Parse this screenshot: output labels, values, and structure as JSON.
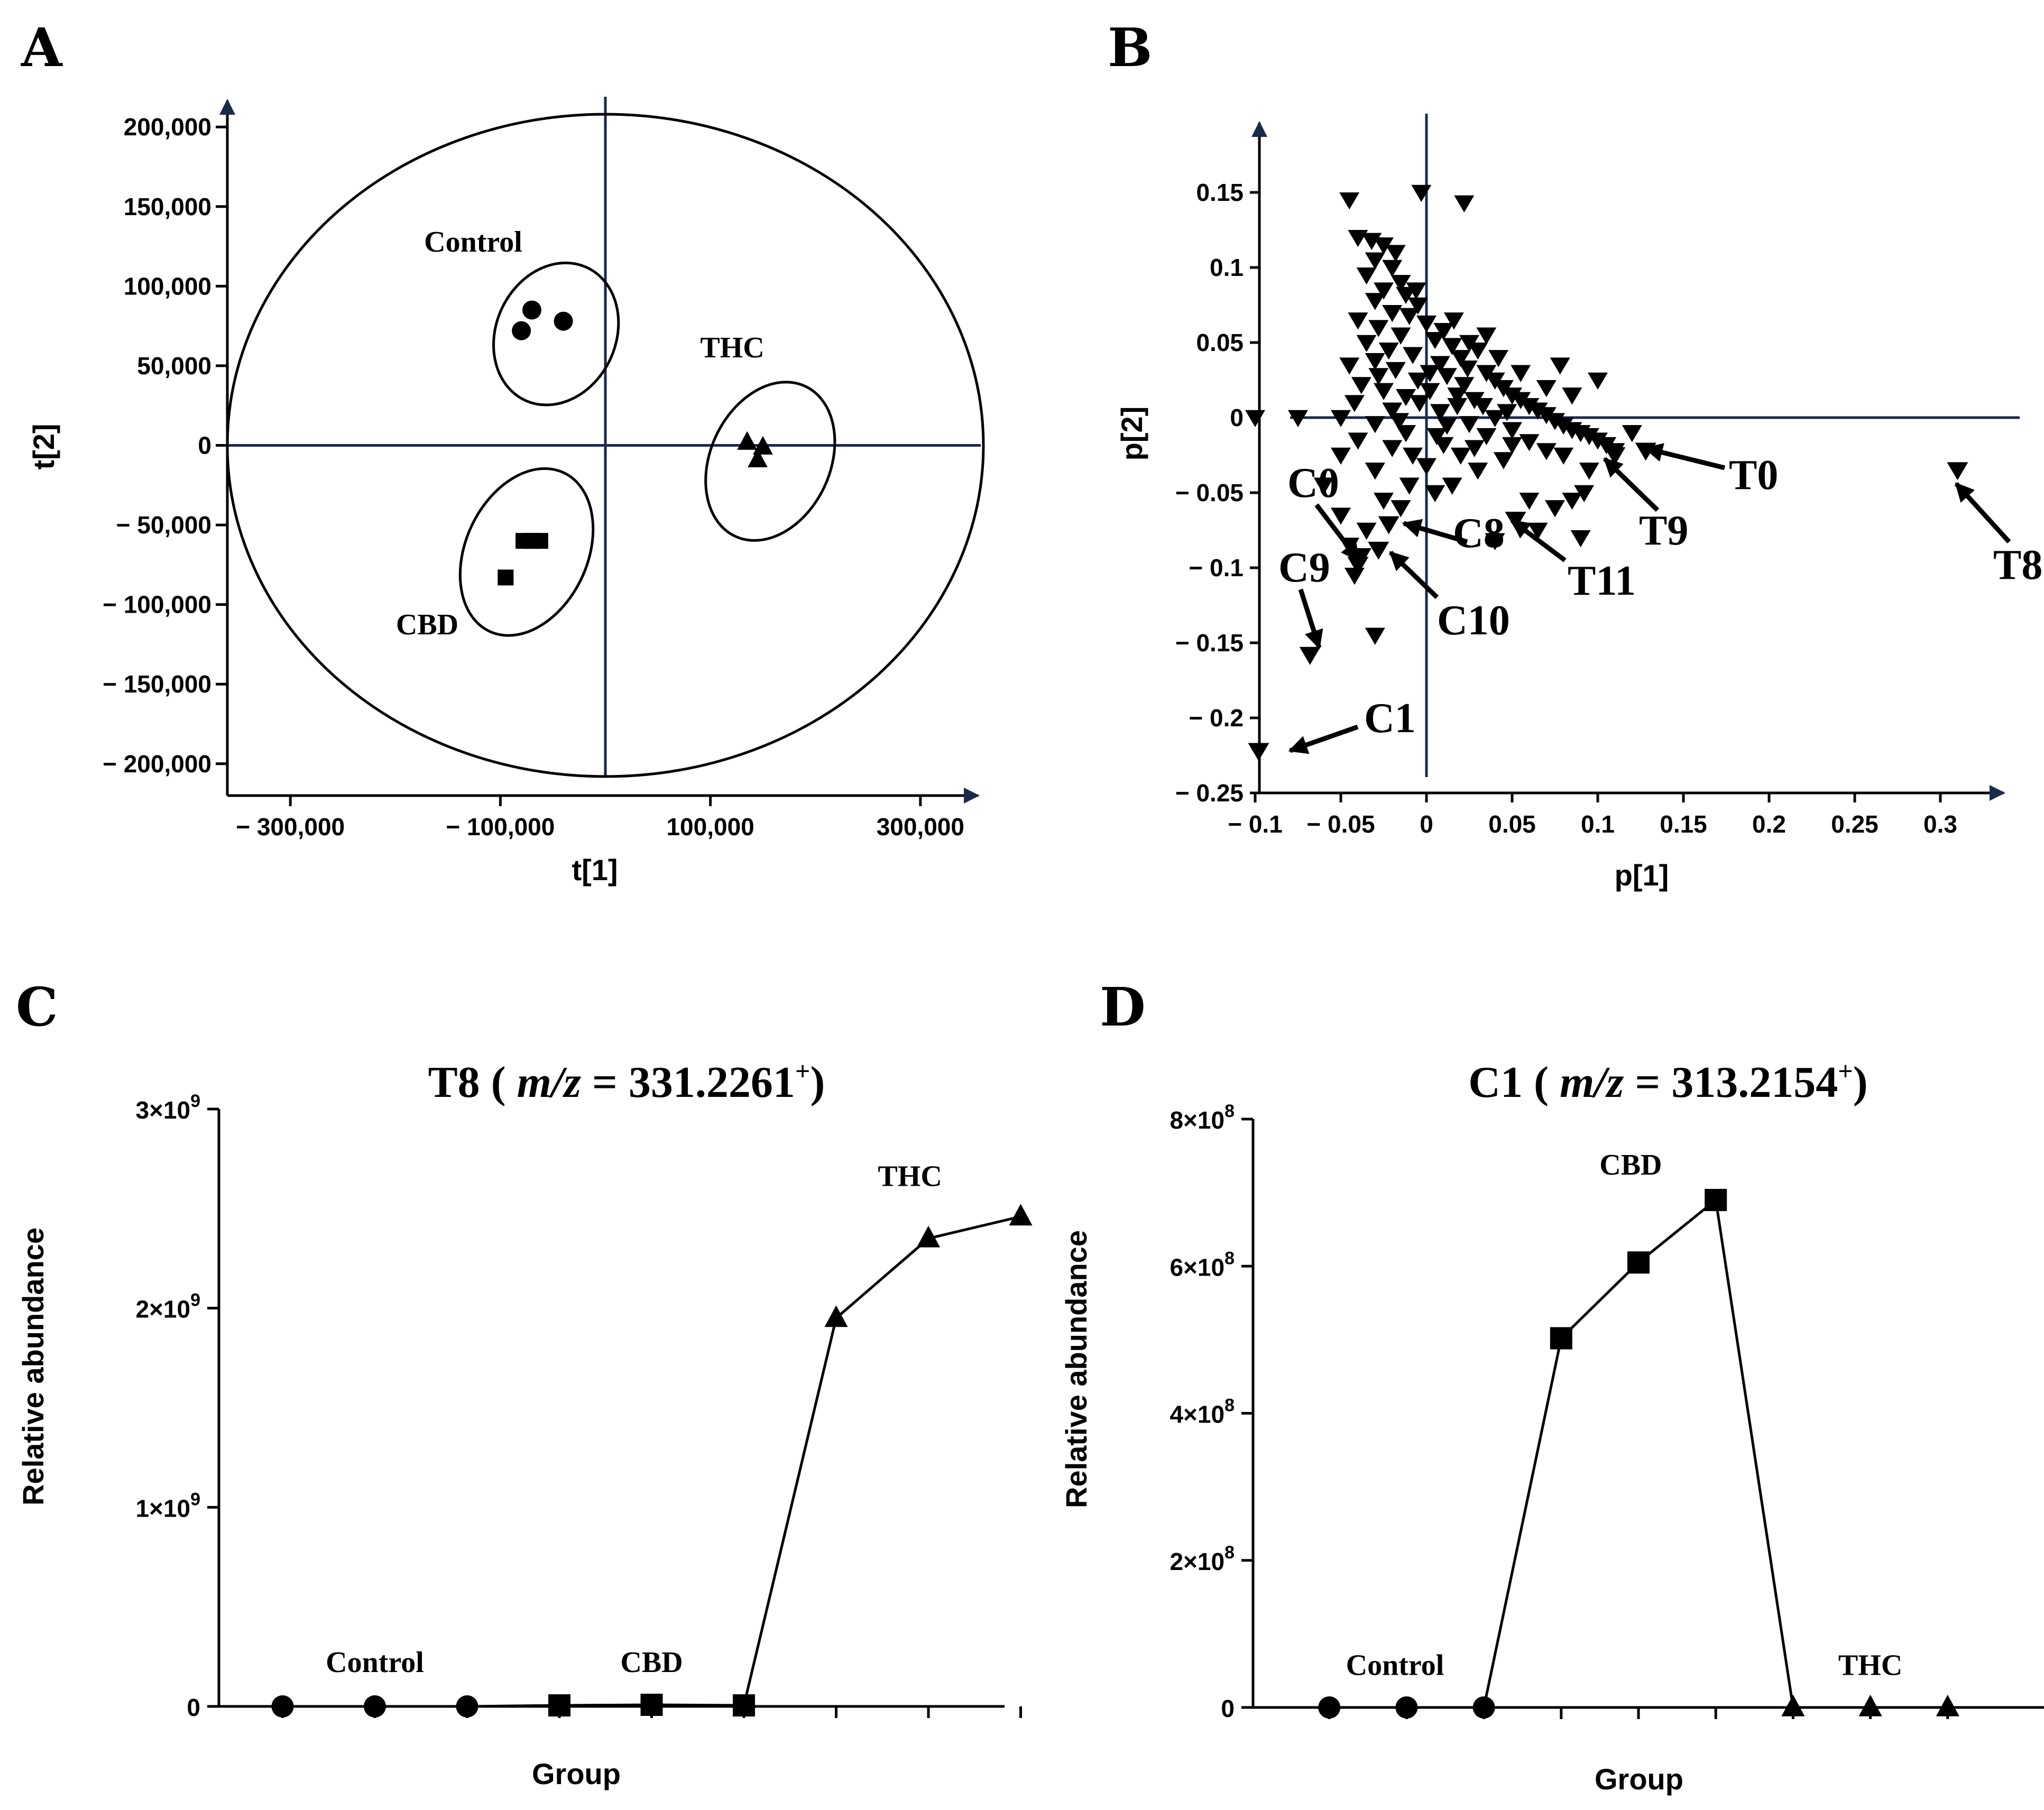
{
  "panels": {
    "A": {
      "letter": "A"
    },
    "B": {
      "letter": "B"
    },
    "C": {
      "letter": "C"
    },
    "D": {
      "letter": "D"
    }
  },
  "chart_data": [
    {
      "panel": "A",
      "type": "scatter",
      "title": "",
      "xlabel": "t[1]",
      "ylabel": "t[2]",
      "xlim": [
        -360000,
        360000
      ],
      "ylim": [
        -220000,
        220000
      ],
      "x_ticks": [
        -300000,
        -100000,
        100000,
        300000
      ],
      "x_tick_labels": [
        "− 300,000",
        "− 100,000",
        "100,000",
        "300,000"
      ],
      "y_ticks": [
        200000,
        150000,
        100000,
        50000,
        0,
        -50000,
        -100000,
        -150000,
        -200000
      ],
      "y_tick_labels": [
        "200,000",
        "150,000",
        "100,000",
        "50,000",
        "0",
        "− 50,000",
        "− 100,000",
        "− 150,000",
        "− 200,000"
      ],
      "confidence_ellipse": {
        "cx": 0,
        "cy": 0,
        "rx": 360000,
        "ry": 208000
      },
      "reference_lines": {
        "x": 0,
        "y": 0
      },
      "series": [
        {
          "name": "Control",
          "marker": "circle",
          "points": [
            [
              -70000,
              85000
            ],
            [
              -40000,
              78000
            ],
            [
              -80000,
              72000
            ]
          ],
          "ellipse": {
            "cx": -47000,
            "cy": 70000,
            "rx": 57000,
            "ry": 46000,
            "angle": -25
          }
        },
        {
          "name": "THC",
          "marker": "triangle",
          "points": [
            [
              135000,
              2000
            ],
            [
              150000,
              -1000
            ],
            [
              145000,
              -9000
            ]
          ],
          "ellipse": {
            "cx": 157000,
            "cy": -10000,
            "rx": 57000,
            "ry": 52000,
            "angle": -25
          }
        },
        {
          "name": "CBD",
          "marker": "square",
          "points": [
            [
              -78000,
              -60000
            ],
            [
              -70000,
              -60000
            ],
            [
              -62000,
              -60000
            ],
            [
              -95000,
              -83000
            ]
          ],
          "ellipse": {
            "cx": -75000,
            "cy": -67000,
            "rx": 58000,
            "ry": 55000,
            "angle": -25
          }
        }
      ]
    },
    {
      "panel": "B",
      "type": "scatter",
      "title": "",
      "xlabel": "p[1]",
      "ylabel": "p[2]",
      "xlim": [
        -0.11,
        0.355
      ],
      "ylim": [
        -0.25,
        0.2
      ],
      "x_ticks": [
        -0.1,
        -0.05,
        0,
        0.05,
        0.1,
        0.15,
        0.2,
        0.25,
        0.3
      ],
      "x_tick_labels": [
        "− 0.1",
        "− 0.05",
        "0",
        "0.05",
        "0.1",
        "0.15",
        "0.2",
        "0.25",
        "0.3"
      ],
      "y_ticks": [
        0.15,
        0.1,
        0.05,
        0,
        -0.05,
        -0.1,
        -0.15,
        -0.2,
        -0.25
      ],
      "y_tick_labels": [
        "0.15",
        "0.1",
        "0.05",
        "0",
        "− 0.05",
        "− 0.1",
        "− 0.15",
        "− 0.2",
        "− 0.25"
      ],
      "marker": "down-triangle",
      "highlighted": [
        {
          "label": "T0",
          "x": 0.128,
          "y": -0.022
        },
        {
          "label": "T9",
          "x": 0.11,
          "y": -0.025
        },
        {
          "label": "T8",
          "x": 0.31,
          "y": -0.035
        },
        {
          "label": "T11",
          "x": 0.052,
          "y": -0.068
        },
        {
          "label": "C0",
          "x": -0.04,
          "y": -0.098
        },
        {
          "label": "C8",
          "x": -0.022,
          "y": -0.071
        },
        {
          "label": "C10",
          "x": -0.028,
          "y": -0.088
        },
        {
          "label": "C9",
          "x": -0.068,
          "y": -0.158
        },
        {
          "label": "C1",
          "x": -0.098,
          "y": -0.222
        }
      ],
      "points": [
        [
          -0.045,
          0.145
        ],
        [
          -0.003,
          0.15
        ],
        [
          0.022,
          0.143
        ],
        [
          -0.04,
          0.12
        ],
        [
          -0.032,
          0.118
        ],
        [
          -0.025,
          0.115
        ],
        [
          -0.018,
          0.11
        ],
        [
          -0.03,
          0.105
        ],
        [
          -0.02,
          0.1
        ],
        [
          -0.035,
          0.095
        ],
        [
          -0.015,
          0.09
        ],
        [
          -0.025,
          0.085
        ],
        [
          -0.012,
          0.082
        ],
        [
          -0.03,
          0.078
        ],
        [
          -0.005,
          0.075
        ],
        [
          -0.02,
          0.07
        ],
        [
          -0.01,
          0.068
        ],
        [
          -0.04,
          0.065
        ],
        [
          0.0,
          0.063
        ],
        [
          -0.028,
          0.06
        ],
        [
          0.01,
          0.058
        ],
        [
          -0.015,
          0.055
        ],
        [
          0.005,
          0.052
        ],
        [
          -0.035,
          0.05
        ],
        [
          0.015,
          0.048
        ],
        [
          -0.022,
          0.045
        ],
        [
          0.025,
          0.05
        ],
        [
          -0.008,
          0.042
        ],
        [
          0.02,
          0.04
        ],
        [
          -0.03,
          0.038
        ],
        [
          0.03,
          0.045
        ],
        [
          0.008,
          0.036
        ],
        [
          -0.045,
          0.035
        ],
        [
          0.035,
          0.03
        ],
        [
          -0.018,
          0.032
        ],
        [
          0.012,
          0.028
        ],
        [
          -0.005,
          0.025
        ],
        [
          0.04,
          0.025
        ],
        [
          -0.038,
          0.022
        ],
        [
          0.022,
          0.022
        ],
        [
          0.045,
          0.02
        ],
        [
          -0.025,
          0.018
        ],
        [
          0.05,
          0.015
        ],
        [
          0.002,
          0.018
        ],
        [
          -0.012,
          0.014
        ],
        [
          0.028,
          0.012
        ],
        [
          0.055,
          0.012
        ],
        [
          0.06,
          0.008
        ],
        [
          -0.042,
          0.01
        ],
        [
          0.018,
          0.008
        ],
        [
          0.065,
          0.005
        ],
        [
          -0.02,
          0.005
        ],
        [
          0.07,
          0.002
        ],
        [
          0.008,
          0.004
        ],
        [
          0.04,
          0.0
        ],
        [
          0.075,
          -0.002
        ],
        [
          -0.05,
          0.0
        ],
        [
          -0.075,
          0.0
        ],
        [
          -0.1,
          0.0
        ],
        [
          0.08,
          -0.005
        ],
        [
          0.025,
          -0.004
        ],
        [
          -0.03,
          -0.004
        ],
        [
          0.085,
          -0.008
        ],
        [
          0.09,
          -0.01
        ],
        [
          0.05,
          -0.008
        ],
        [
          0.095,
          -0.012
        ],
        [
          0.1,
          -0.015
        ],
        [
          0.035,
          -0.012
        ],
        [
          -0.012,
          -0.01
        ],
        [
          0.105,
          -0.018
        ],
        [
          0.06,
          -0.016
        ],
        [
          0.01,
          -0.018
        ],
        [
          -0.04,
          -0.015
        ],
        [
          0.07,
          -0.022
        ],
        [
          0.12,
          -0.01
        ],
        [
          0.02,
          -0.025
        ],
        [
          -0.02,
          -0.02
        ],
        [
          0.045,
          -0.028
        ],
        [
          -0.05,
          -0.025
        ],
        [
          0.0,
          -0.032
        ],
        [
          0.03,
          -0.035
        ],
        [
          -0.03,
          -0.035
        ],
        [
          0.015,
          -0.045
        ],
        [
          -0.01,
          -0.045
        ],
        [
          -0.06,
          -0.045
        ],
        [
          -0.025,
          -0.055
        ],
        [
          0.005,
          -0.05
        ],
        [
          0.06,
          -0.055
        ],
        [
          0.075,
          -0.06
        ],
        [
          0.085,
          -0.055
        ],
        [
          0.092,
          -0.05
        ],
        [
          0.09,
          -0.08
        ],
        [
          0.065,
          -0.075
        ],
        [
          -0.05,
          -0.065
        ],
        [
          -0.015,
          -0.06
        ],
        [
          -0.035,
          -0.075
        ],
        [
          -0.045,
          -0.085
        ],
        [
          -0.038,
          -0.092
        ],
        [
          -0.042,
          -0.105
        ],
        [
          -0.03,
          -0.145
        ],
        [
          0.04,
          -0.082
        ],
        [
          0.11,
          -0.022
        ],
        [
          0.095,
          -0.035
        ],
        [
          0.08,
          -0.025
        ],
        [
          0.035,
          0.055
        ],
        [
          0.042,
          0.04
        ],
        [
          0.055,
          0.03
        ],
        [
          0.07,
          0.02
        ],
        [
          0.085,
          0.015
        ],
        [
          0.1,
          0.025
        ],
        [
          0.078,
          0.035
        ],
        [
          0.05,
          -0.018
        ],
        [
          0.028,
          -0.02
        ],
        [
          -0.008,
          -0.025
        ],
        [
          0.016,
          0.065
        ],
        [
          -0.006,
          0.085
        ],
        [
          0.002,
          0.03
        ],
        [
          -0.028,
          0.028
        ],
        [
          0.012,
          -0.005
        ],
        [
          0.018,
          0.015
        ],
        [
          -0.004,
          0.01
        ],
        [
          0.033,
          0.008
        ],
        [
          0.047,
          0.004
        ],
        [
          -0.016,
          -0.002
        ],
        [
          0.006,
          -0.012
        ],
        [
          0.024,
          0.033
        ]
      ],
      "annotations": [
        "T0",
        "T9",
        "T8",
        "T11",
        "C0",
        "C8",
        "C10",
        "C9",
        "C1"
      ]
    },
    {
      "panel": "C",
      "type": "line",
      "title": "T8 ( m/z = 331.2261⁺)",
      "title_parts": {
        "compound": "T8",
        "mz_label": "m/z",
        "mz_value": "= 331.2261",
        "charge": "+"
      },
      "xlabel": "Group",
      "ylabel": "Relative abundance",
      "ylim": [
        0,
        3000000000
      ],
      "y_ticks": [
        0,
        1000000000,
        2000000000,
        3000000000
      ],
      "y_tick_labels": [
        {
          "base": "0",
          "exp": ""
        },
        {
          "base": "1×10",
          "exp": "9"
        },
        {
          "base": "2×10",
          "exp": "9"
        },
        {
          "base": "3×10",
          "exp": "9"
        }
      ],
      "x": [
        1,
        2,
        3,
        4,
        5,
        6,
        7,
        8,
        9
      ],
      "xlim": [
        0,
        10
      ],
      "series": [
        {
          "name": "Control",
          "marker": "circle",
          "x": [
            1,
            2,
            3
          ],
          "values": [
            0,
            0,
            0
          ]
        },
        {
          "name": "CBD",
          "marker": "square",
          "x": [
            4,
            5,
            6
          ],
          "values": [
            5000000,
            8000000,
            5000000
          ]
        },
        {
          "name": "THC",
          "marker": "triangle",
          "x": [
            7,
            8,
            9
          ],
          "values": [
            1950000000,
            2350000000,
            2460000000
          ]
        }
      ],
      "group_labels": [
        {
          "text": "Control",
          "x": 2,
          "y": 120000000
        },
        {
          "text": "CBD",
          "x": 5,
          "y": 120000000
        },
        {
          "text": "THC",
          "x": 7.8,
          "y": 2560000000
        }
      ]
    },
    {
      "panel": "D",
      "type": "line",
      "title": "C1 ( m/z = 313.2154⁺)",
      "title_parts": {
        "compound": "C1",
        "mz_label": "m/z",
        "mz_value": "= 313.2154",
        "charge": "+"
      },
      "xlabel": "Group",
      "ylabel": "Relative abundance",
      "ylim": [
        0,
        800000000
      ],
      "y_ticks": [
        0,
        200000000,
        400000000,
        600000000,
        800000000
      ],
      "y_tick_labels": [
        {
          "base": "0",
          "exp": ""
        },
        {
          "base": "2×10",
          "exp": "8"
        },
        {
          "base": "4×10",
          "exp": "8"
        },
        {
          "base": "6×10",
          "exp": "8"
        },
        {
          "base": "8×10",
          "exp": "8"
        }
      ],
      "x": [
        1,
        2,
        3,
        4,
        5,
        6,
        7,
        8,
        9
      ],
      "xlim": [
        0,
        10
      ],
      "series": [
        {
          "name": "Control",
          "marker": "circle",
          "x": [
            1,
            2,
            3
          ],
          "values": [
            0,
            0,
            0
          ]
        },
        {
          "name": "CBD",
          "marker": "square",
          "x": [
            4,
            5,
            6
          ],
          "values": [
            502000000,
            605000000,
            690000000
          ]
        },
        {
          "name": "THC",
          "marker": "triangle",
          "x": [
            7,
            8,
            9
          ],
          "values": [
            0,
            0,
            0
          ]
        }
      ],
      "group_labels": [
        {
          "text": "Control",
          "x": 1.85,
          "y": 30000000
        },
        {
          "text": "CBD",
          "x": 4.9,
          "y": 125000000,
          "anchor_top": 710000000
        },
        {
          "text": "THC",
          "x": 8.0,
          "y": 30000000
        }
      ]
    }
  ]
}
